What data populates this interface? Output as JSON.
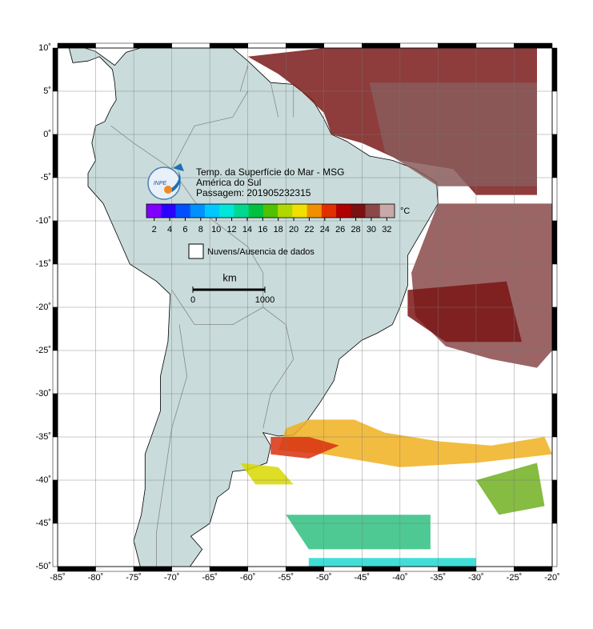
{
  "map": {
    "xlim": [
      -85,
      -20
    ],
    "ylim": [
      -50,
      10
    ],
    "grid": true,
    "xticks": [
      {
        "value": -85,
        "label": "-85˚"
      },
      {
        "value": -80,
        "label": "-80˚"
      },
      {
        "value": -75,
        "label": "-75˚"
      },
      {
        "value": -70,
        "label": "-70˚"
      },
      {
        "value": -65,
        "label": "-65˚"
      },
      {
        "value": -60,
        "label": "-60˚"
      },
      {
        "value": -55,
        "label": "-55˚"
      },
      {
        "value": -50,
        "label": "-50˚"
      },
      {
        "value": -45,
        "label": "-45˚"
      },
      {
        "value": -40,
        "label": "-40˚"
      },
      {
        "value": -35,
        "label": "-35˚"
      },
      {
        "value": -30,
        "label": "-30˚"
      },
      {
        "value": -25,
        "label": "-25˚"
      },
      {
        "value": -20,
        "label": "-20˚"
      }
    ],
    "yticks": [
      {
        "value": 10,
        "label": "10˚"
      },
      {
        "value": 5,
        "label": "5˚"
      },
      {
        "value": 0,
        "label": "0˚"
      },
      {
        "value": -5,
        "label": "-5˚"
      },
      {
        "value": -10,
        "label": "-10˚"
      },
      {
        "value": -15,
        "label": "-15˚"
      },
      {
        "value": -20,
        "label": "-20˚"
      },
      {
        "value": -25,
        "label": "-25˚"
      },
      {
        "value": -30,
        "label": "-30˚"
      },
      {
        "value": -35,
        "label": "-35˚"
      },
      {
        "value": -40,
        "label": "-40˚"
      },
      {
        "value": -45,
        "label": "-45˚"
      },
      {
        "value": -50,
        "label": "-50˚"
      }
    ]
  },
  "header": {
    "logo": "INPE",
    "title": "Temp. da Superfície do Mar - MSG",
    "region": "América do Sul",
    "pass": "Passagem: 201905232315"
  },
  "colorbar": {
    "range": [
      1,
      33
    ],
    "ticks": [
      2,
      4,
      6,
      8,
      10,
      12,
      14,
      16,
      18,
      20,
      22,
      24,
      26,
      28,
      30,
      32
    ],
    "unit": "°C",
    "colors": [
      "#8000ff",
      "#2a00ff",
      "#0050ff",
      "#0090ff",
      "#00c8ff",
      "#00e6d8",
      "#00d890",
      "#00c040",
      "#50c000",
      "#b0d800",
      "#f0e000",
      "#f09000",
      "#e03000",
      "#b00000",
      "#7a1010",
      "#8a4848",
      "#c8a8a8"
    ]
  },
  "legend": {
    "label": "Nuvens/Ausencia de dados"
  },
  "scalebar": {
    "unit": "km",
    "ticks": [
      0,
      1000
    ]
  }
}
